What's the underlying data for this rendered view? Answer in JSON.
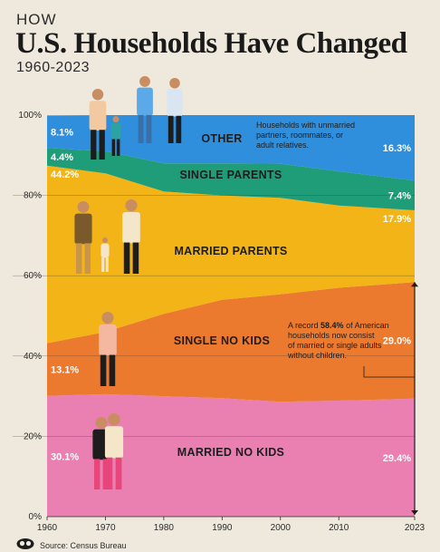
{
  "header": {
    "kicker": "HOW",
    "title": "U.S. Households Have Changed",
    "subtitle": "1960-2023"
  },
  "source": "Source: Census Bureau",
  "colors": {
    "background": "#efe9dd",
    "other": "#2f8fdc",
    "single_parents": "#1f9d78",
    "married_parents": "#f2b416",
    "single_no_kids": "#ec7a2e",
    "married_no_kids": "#ea7fb2"
  },
  "chart_data": {
    "type": "area",
    "stacked": true,
    "x_ticks": [
      1960,
      1970,
      1980,
      1990,
      2000,
      2010,
      2023
    ],
    "y_ticks": [
      "0%",
      "20%",
      "40%",
      "60%",
      "80%",
      "100%"
    ],
    "ylim": [
      0,
      100
    ],
    "xlim": [
      1960,
      2023
    ],
    "series": [
      {
        "name": "MARRIED NO KIDS",
        "key": "married_no_kids",
        "start_label": "30.1%",
        "end_label": "29.4%",
        "x": [
          1960,
          1970,
          1980,
          1990,
          2000,
          2010,
          2023
        ],
        "values": [
          30.1,
          30.5,
          30.0,
          29.5,
          28.6,
          28.9,
          29.4
        ]
      },
      {
        "name": "SINGLE NO KIDS",
        "key": "single_no_kids",
        "start_label": "13.1%",
        "end_label": "29.0%",
        "x": [
          1960,
          1970,
          1980,
          1990,
          2000,
          2010,
          2023
        ],
        "values": [
          13.1,
          15.5,
          20.5,
          24.5,
          26.8,
          28.1,
          29.0
        ]
      },
      {
        "name": "MARRIED PARENTS",
        "key": "married_parents",
        "start_label": "44.2%",
        "end_label": "17.9%",
        "x": [
          1960,
          1970,
          1980,
          1990,
          2000,
          2010,
          2023
        ],
        "values": [
          44.2,
          39.5,
          30.5,
          26.0,
          24.0,
          20.5,
          17.9
        ]
      },
      {
        "name": "SINGLE PARENTS",
        "key": "single_parents",
        "start_label": "4.4%",
        "end_label": "7.4%",
        "x": [
          1960,
          1970,
          1980,
          1990,
          2000,
          2010,
          2023
        ],
        "values": [
          4.4,
          5.5,
          7.0,
          8.0,
          8.5,
          8.5,
          7.4
        ]
      },
      {
        "name": "OTHER",
        "key": "other",
        "start_label": "8.1%",
        "end_label": "16.3%",
        "x": [
          1960,
          1970,
          1980,
          1990,
          2000,
          2010,
          2023
        ],
        "values": [
          8.1,
          9.0,
          12.0,
          12.0,
          12.1,
          14.0,
          16.3
        ]
      }
    ],
    "annotations": {
      "other_note": [
        "Households with unmarried",
        "partners, roommates, or",
        "adult relatives."
      ],
      "record_note": {
        "prefix": "A record ",
        "bold": "58.4%",
        "suffix": " of American",
        "lines": [
          "households now consist",
          "of married or single adults",
          "without children."
        ]
      }
    }
  }
}
